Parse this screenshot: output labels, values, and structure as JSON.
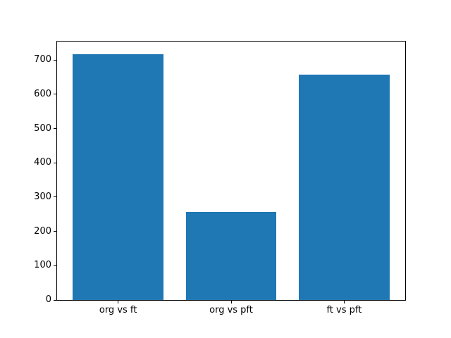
{
  "chart_data": {
    "type": "bar",
    "title": "",
    "xlabel": "",
    "ylabel": "",
    "categories": [
      "org vs ft",
      "org vs pft",
      "ft vs pft"
    ],
    "values": [
      718,
      257,
      657
    ],
    "ylim": [
      0,
      754
    ],
    "yticks": [
      0,
      100,
      200,
      300,
      400,
      500,
      600,
      700
    ],
    "bar_color": "#1f77b4",
    "spine_color": "#000000",
    "background_color": "#ffffff",
    "grid": false,
    "legend": null,
    "bar_width_fraction": 0.8,
    "x_margin_fraction": 0.05
  }
}
